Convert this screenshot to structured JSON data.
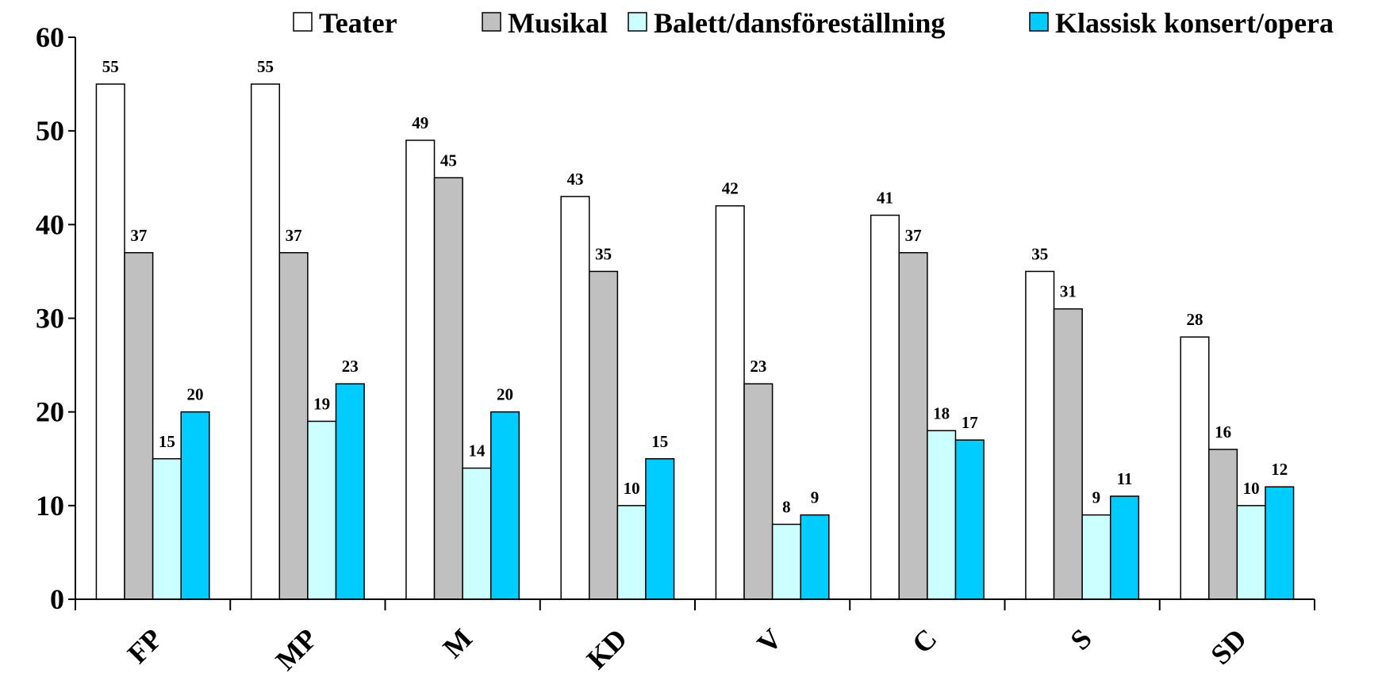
{
  "chart_data": {
    "type": "bar",
    "title": "",
    "xlabel": "",
    "ylabel": "",
    "ylim": [
      0,
      60
    ],
    "yticks": [
      0,
      10,
      20,
      30,
      40,
      50,
      60
    ],
    "categories": [
      "FP",
      "MP",
      "M",
      "KD",
      "V",
      "C",
      "S",
      "SD"
    ],
    "series": [
      {
        "name": "Teater",
        "color": "#ffffff",
        "values": [
          55,
          55,
          49,
          43,
          42,
          41,
          35,
          28
        ]
      },
      {
        "name": "Musikal",
        "color": "#c0c0c0",
        "values": [
          37,
          37,
          45,
          35,
          23,
          37,
          31,
          16
        ]
      },
      {
        "name": "Balett/dansföreställning",
        "color": "#ccffff",
        "values": [
          15,
          19,
          14,
          10,
          8,
          18,
          9,
          10
        ]
      },
      {
        "name": "Klassisk konsert/opera",
        "color": "#00ccff",
        "values": [
          20,
          23,
          20,
          15,
          9,
          17,
          11,
          12
        ]
      }
    ],
    "legend_position": "top",
    "grid": false,
    "data_labels": true
  }
}
